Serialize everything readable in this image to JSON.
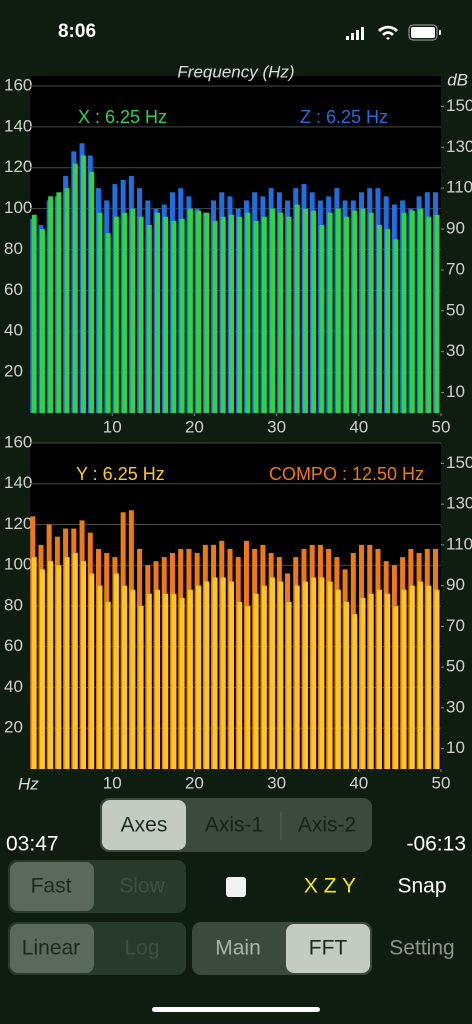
{
  "status_bar": {
    "time": "8:06"
  },
  "chart_data": [
    {
      "type": "bar",
      "title": "Frequency (Hz)",
      "y2_label": "dB",
      "x": [
        1,
        2,
        3,
        4,
        5,
        6,
        7,
        8,
        9,
        10,
        11,
        12,
        13,
        14,
        15,
        16,
        17,
        18,
        19,
        20,
        21,
        22,
        23,
        24,
        25,
        26,
        27,
        28,
        29,
        30,
        31,
        32,
        33,
        34,
        35,
        36,
        37,
        38,
        39,
        40,
        41,
        42,
        43,
        44,
        45,
        46,
        47,
        48,
        49,
        50
      ],
      "series": [
        {
          "name": "X : 6.25 Hz",
          "color": "#2fd24a",
          "values": [
            97,
            90,
            106,
            108,
            110,
            122,
            126,
            118,
            98,
            88,
            96,
            98,
            100,
            96,
            92,
            98,
            96,
            94,
            95,
            100,
            99,
            98,
            94,
            96,
            97,
            96,
            98,
            94,
            96,
            100,
            98,
            96,
            102,
            100,
            99,
            92,
            98,
            100,
            96,
            99,
            100,
            98,
            92,
            90,
            85,
            98,
            99,
            100,
            96,
            97
          ]
        },
        {
          "name": "Z : 6.25 Hz",
          "color": "#1f6fe0",
          "values": [
            95,
            92,
            104,
            106,
            116,
            128,
            132,
            126,
            110,
            104,
            112,
            114,
            116,
            110,
            104,
            100,
            102,
            108,
            110,
            106,
            100,
            98,
            104,
            108,
            106,
            100,
            104,
            108,
            106,
            110,
            108,
            104,
            110,
            112,
            108,
            104,
            106,
            110,
            104,
            104,
            108,
            110,
            110,
            106,
            102,
            104,
            100,
            106,
            108,
            108
          ]
        }
      ],
      "xlim": [
        0,
        50
      ],
      "xticks": [
        10,
        20,
        30,
        40,
        50
      ],
      "ylim": [
        0,
        160
      ],
      "yticks": [
        20,
        40,
        60,
        80,
        100,
        120,
        140,
        160
      ],
      "y2lim": [
        0,
        160
      ],
      "y2ticks": [
        10,
        30,
        50,
        70,
        90,
        110,
        130,
        150
      ],
      "grid": true
    },
    {
      "type": "bar",
      "x_label": "Hz",
      "x": [
        1,
        2,
        3,
        4,
        5,
        6,
        7,
        8,
        9,
        10,
        11,
        12,
        13,
        14,
        15,
        16,
        17,
        18,
        19,
        20,
        21,
        22,
        23,
        24,
        25,
        26,
        27,
        28,
        29,
        30,
        31,
        32,
        33,
        34,
        35,
        36,
        37,
        38,
        39,
        40,
        41,
        42,
        43,
        44,
        45,
        46,
        47,
        48,
        49,
        50
      ],
      "series": [
        {
          "name": "Y : 6.25 Hz",
          "color": "#ffc81e",
          "values": [
            104,
            98,
            102,
            100,
            104,
            106,
            102,
            96,
            90,
            82,
            96,
            90,
            88,
            80,
            86,
            88,
            86,
            86,
            84,
            88,
            90,
            92,
            94,
            94,
            92,
            82,
            80,
            86,
            90,
            94,
            92,
            82,
            90,
            92,
            94,
            94,
            92,
            88,
            82,
            76,
            84,
            86,
            88,
            86,
            80,
            88,
            90,
            92,
            90,
            88
          ]
        },
        {
          "name": "COMPO : 12.50 Hz",
          "color": "#f07a12",
          "values": [
            124,
            110,
            120,
            114,
            118,
            118,
            122,
            116,
            108,
            106,
            104,
            126,
            127,
            108,
            100,
            102,
            104,
            106,
            108,
            108,
            106,
            110,
            110,
            112,
            108,
            104,
            112,
            108,
            110,
            106,
            104,
            96,
            104,
            108,
            110,
            110,
            108,
            104,
            98,
            106,
            110,
            110,
            108,
            102,
            100,
            104,
            108,
            106,
            108,
            108
          ]
        }
      ],
      "xlim": [
        0,
        50
      ],
      "xticks": [
        10,
        20,
        30,
        40,
        50
      ],
      "ylim": [
        0,
        160
      ],
      "yticks": [
        20,
        40,
        60,
        80,
        100,
        120,
        140,
        160
      ],
      "y2lim": [
        0,
        160
      ],
      "y2ticks": [
        10,
        30,
        50,
        70,
        90,
        110,
        130,
        150
      ],
      "grid": true
    }
  ],
  "controls": {
    "time_elapsed": "03:47",
    "time_remaining": "-06:13",
    "axes_tabs": [
      "Axes",
      "Axis-1",
      "Axis-2"
    ],
    "speed": [
      "Fast",
      "Slow"
    ],
    "scale": [
      "Linear",
      "Log"
    ],
    "view": [
      "Main",
      "FFT"
    ],
    "axis_order": "X Z Y",
    "snap": "Snap",
    "setting": "Setting"
  }
}
